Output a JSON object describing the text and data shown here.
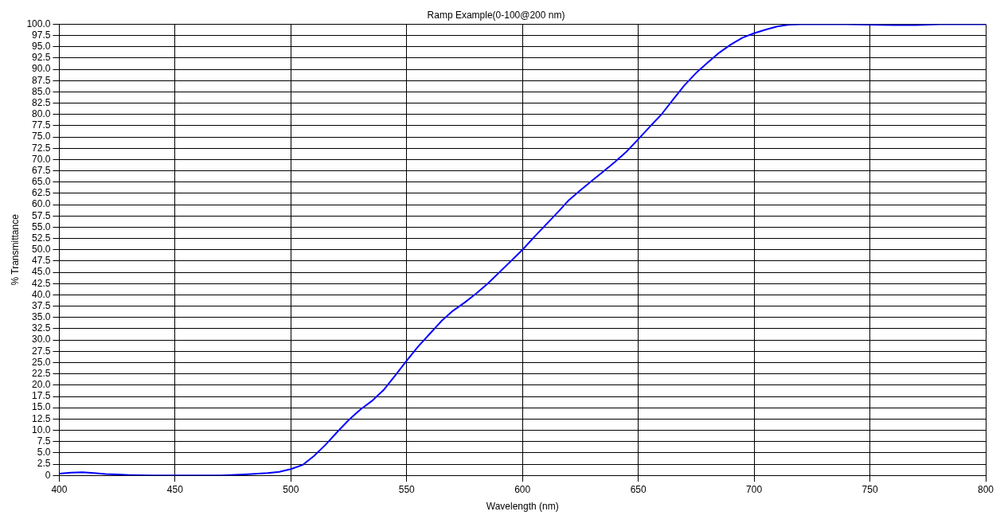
{
  "chart_data": {
    "type": "line",
    "title": "Ramp Example(0-100@200 nm)",
    "xlabel": "Wavelength (nm)",
    "ylabel": "% Transmittance",
    "x": [
      400,
      405,
      410,
      415,
      420,
      425,
      430,
      440,
      450,
      460,
      470,
      480,
      490,
      495,
      500,
      505,
      510,
      515,
      520,
      525,
      530,
      535,
      540,
      545,
      550,
      555,
      560,
      565,
      570,
      575,
      580,
      585,
      590,
      595,
      600,
      605,
      610,
      615,
      620,
      625,
      630,
      635,
      640,
      645,
      650,
      655,
      660,
      665,
      670,
      675,
      680,
      685,
      690,
      695,
      700,
      705,
      710,
      715,
      720,
      730,
      740,
      750,
      760,
      770,
      780,
      790,
      800
    ],
    "series": [
      {
        "color": "#0000ff",
        "values": [
          0.4,
          0.6,
          0.7,
          0.5,
          0.3,
          0.2,
          0.1,
          0,
          0,
          0,
          0,
          0.2,
          0.5,
          0.8,
          1.4,
          2.3,
          4.3,
          6.8,
          9.6,
          12.3,
          14.6,
          16.5,
          18.9,
          22.1,
          25.4,
          28.6,
          31.4,
          34.2,
          36.5,
          38.3,
          40.3,
          42.5,
          45,
          47.5,
          50,
          52.8,
          55.5,
          58.2,
          61,
          63.2,
          65.3,
          67.4,
          69.5,
          71.8,
          74.5,
          77.3,
          80,
          83.3,
          86.5,
          89.2,
          91.5,
          93.7,
          95.5,
          97,
          98,
          98.8,
          99.5,
          99.9,
          100,
          100,
          100,
          99.9,
          99.8,
          99.8,
          100,
          100,
          100
        ]
      }
    ],
    "xlim": [
      400,
      800
    ],
    "xticks": [
      400,
      450,
      500,
      550,
      600,
      650,
      700,
      750,
      800
    ],
    "ylim": [
      0,
      100
    ],
    "yticks": [
      0,
      {
        "value": 2.5,
        "label": "2.5"
      },
      {
        "value": 5,
        "label": "5.0"
      },
      {
        "value": 7.5,
        "label": "7.5"
      },
      {
        "value": 10,
        "label": "10.0"
      },
      {
        "value": 12.5,
        "label": "12.5"
      },
      {
        "value": 15,
        "label": "15.0"
      },
      {
        "value": 17.5,
        "label": "17.5"
      },
      {
        "value": 20,
        "label": "20.0"
      },
      {
        "value": 22.5,
        "label": "22.5"
      },
      {
        "value": 25,
        "label": "25.0"
      },
      {
        "value": 27.5,
        "label": "27.5"
      },
      {
        "value": 30,
        "label": "30.0"
      },
      {
        "value": 32.5,
        "label": "32.5"
      },
      {
        "value": 35,
        "label": "35.0"
      },
      {
        "value": 37.5,
        "label": "37.5"
      },
      {
        "value": 40,
        "label": "40.0"
      },
      {
        "value": 42.5,
        "label": "42.5"
      },
      {
        "value": 45,
        "label": "45.0"
      },
      {
        "value": 47.5,
        "label": "47.5"
      },
      {
        "value": 50,
        "label": "50.0"
      },
      {
        "value": 52.5,
        "label": "52.5"
      },
      {
        "value": 55,
        "label": "55.0"
      },
      {
        "value": 57.5,
        "label": "57.5"
      },
      {
        "value": 60,
        "label": "60.0"
      },
      {
        "value": 62.5,
        "label": "62.5"
      },
      {
        "value": 65,
        "label": "65.0"
      },
      {
        "value": 67.5,
        "label": "67.5"
      },
      {
        "value": 70,
        "label": "70.0"
      },
      {
        "value": 72.5,
        "label": "72.5"
      },
      {
        "value": 75,
        "label": "75.0"
      },
      {
        "value": 77.5,
        "label": "77.5"
      },
      {
        "value": 80,
        "label": "80.0"
      },
      {
        "value": 82.5,
        "label": "82.5"
      },
      {
        "value": 85,
        "label": "85.0"
      },
      {
        "value": 87.5,
        "label": "87.5"
      },
      {
        "value": 90,
        "label": "90.0"
      },
      {
        "value": 92.5,
        "label": "92.5"
      },
      {
        "value": 95,
        "label": "95.0"
      },
      {
        "value": 97.5,
        "label": "97.5"
      },
      {
        "value": 100,
        "label": "100.0"
      }
    ],
    "grid": true,
    "legend": false,
    "marker": "none",
    "line_style": "solid"
  }
}
